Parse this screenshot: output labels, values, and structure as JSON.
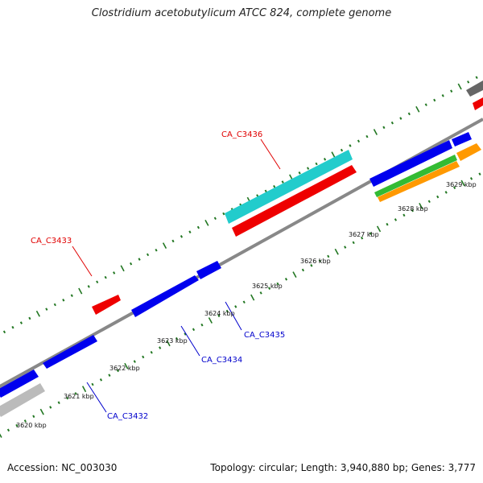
{
  "title": "Clostridium acetobutylicum ATCC 824, complete genome",
  "footer": {
    "accession": "Accession: NC_003030",
    "stats": "Topology: circular; Length: 3,940,880 bp; Genes: 3,777"
  },
  "kbp_labels": [
    "3620 kbp",
    "3621 kbp",
    "3622 kbp",
    "3623 kbp",
    "3624 kbp",
    "3625 kbp",
    "3626 kbp",
    "3627 kbp",
    "3628 kbp",
    "3629 kbp"
  ],
  "gene_labels": {
    "ca_c3432": "CA_C3432",
    "ca_c3433": "CA_C3433",
    "ca_c3434": "CA_C3434",
    "ca_c3435": "CA_C3435",
    "ca_c3436": "CA_C3436"
  },
  "colors": {
    "forward_label": "#0000cc",
    "reverse_label": "#e00000",
    "gene_blue": "#0000ee",
    "gene_red": "#ee0000",
    "gene_cyan": "#22cccc",
    "gene_green": "#33bb33",
    "gene_orange": "#ff9900",
    "gene_gray": "#bbbbbb",
    "backbone": "#888888",
    "tick": "#227722"
  }
}
